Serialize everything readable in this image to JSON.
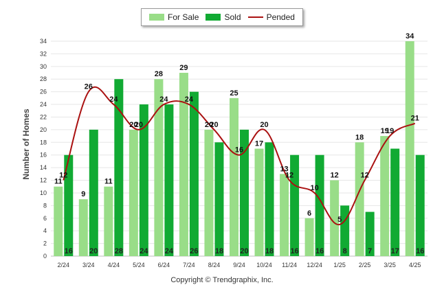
{
  "legend": {
    "for_sale": "For Sale",
    "sold": "Sold",
    "pended": "Pended"
  },
  "colors": {
    "for_sale": "#99dd88",
    "sold": "#11aa33",
    "pended": "#aa1111",
    "grid": "#e6e6e6",
    "axis_text": "#333333"
  },
  "copyright": "Copyright © Trendgraphix, Inc.",
  "chart_data": {
    "type": "bar",
    "ylabel": "Number of Homes",
    "ylim": [
      0,
      34
    ],
    "yticks": [
      0,
      2,
      4,
      6,
      8,
      10,
      12,
      14,
      16,
      18,
      20,
      22,
      24,
      26,
      28,
      30,
      32,
      34
    ],
    "grid": true,
    "legend_position": "top-center",
    "categories": [
      "2/24",
      "3/24",
      "4/24",
      "5/24",
      "6/24",
      "7/24",
      "8/24",
      "9/24",
      "10/24",
      "11/24",
      "12/24",
      "1/25",
      "2/25",
      "3/25",
      "4/25"
    ],
    "series": [
      {
        "name": "For Sale",
        "kind": "bar",
        "values": [
          11,
          9,
          11,
          20,
          28,
          29,
          20,
          25,
          17,
          13,
          6,
          12,
          18,
          19,
          34
        ]
      },
      {
        "name": "Sold",
        "kind": "bar",
        "values": [
          16,
          20,
          28,
          24,
          24,
          26,
          18,
          20,
          18,
          16,
          16,
          8,
          7,
          17,
          16
        ]
      },
      {
        "name": "Pended",
        "kind": "line",
        "values": [
          12,
          26,
          24,
          20,
          24,
          24,
          20,
          16,
          20,
          12,
          10,
          5,
          12,
          19,
          21
        ]
      }
    ]
  }
}
